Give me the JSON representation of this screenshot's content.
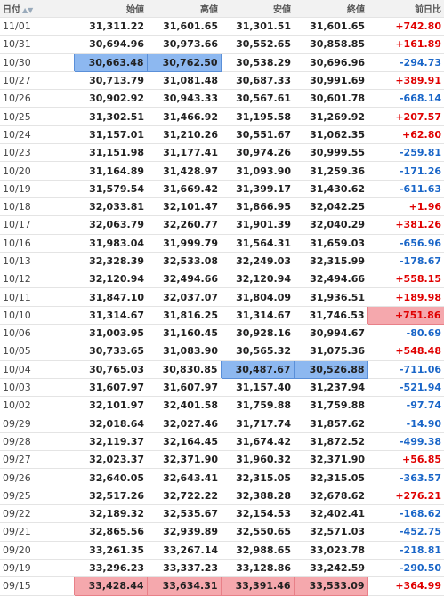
{
  "table": {
    "header": [
      "日付",
      "始値",
      "高値",
      "安値",
      "終値",
      "前日比"
    ],
    "rows": [
      [
        "11/01",
        "31,311.22",
        "31,601.65",
        "31,301.51",
        "31,601.65",
        "+742.80"
      ],
      [
        "10/31",
        "30,694.96",
        "30,973.66",
        "30,552.65",
        "30,858.85",
        "+161.89"
      ],
      [
        "10/30",
        "30,663.48",
        "30,762.50",
        "30,538.29",
        "30,696.96",
        "-294.73"
      ],
      [
        "10/27",
        "30,713.79",
        "31,081.48",
        "30,687.33",
        "30,991.69",
        "+389.91"
      ],
      [
        "10/26",
        "30,902.92",
        "30,943.33",
        "30,567.61",
        "30,601.78",
        "-668.14"
      ],
      [
        "10/25",
        "31,302.51",
        "31,466.92",
        "31,195.58",
        "31,269.92",
        "+207.57"
      ],
      [
        "10/24",
        "31,157.01",
        "31,210.26",
        "30,551.67",
        "31,062.35",
        "+62.80"
      ],
      [
        "10/23",
        "31,151.98",
        "31,177.41",
        "30,974.26",
        "30,999.55",
        "-259.81"
      ],
      [
        "10/20",
        "31,164.89",
        "31,428.97",
        "31,093.90",
        "31,259.36",
        "-171.26"
      ],
      [
        "10/19",
        "31,579.54",
        "31,669.42",
        "31,399.17",
        "31,430.62",
        "-611.63"
      ],
      [
        "10/18",
        "32,033.81",
        "32,101.47",
        "31,866.95",
        "32,042.25",
        "+1.96"
      ],
      [
        "10/17",
        "32,063.79",
        "32,260.77",
        "31,901.39",
        "32,040.29",
        "+381.26"
      ],
      [
        "10/16",
        "31,983.04",
        "31,999.79",
        "31,564.31",
        "31,659.03",
        "-656.96"
      ],
      [
        "10/13",
        "32,328.39",
        "32,533.08",
        "32,249.03",
        "32,315.99",
        "-178.67"
      ],
      [
        "10/12",
        "32,120.94",
        "32,494.66",
        "32,120.94",
        "32,494.66",
        "+558.15"
      ],
      [
        "10/11",
        "31,847.10",
        "32,037.07",
        "31,804.09",
        "31,936.51",
        "+189.98"
      ],
      [
        "10/10",
        "31,314.67",
        "31,816.25",
        "31,314.67",
        "31,746.53",
        "+751.86"
      ],
      [
        "10/06",
        "31,003.95",
        "31,160.45",
        "30,928.16",
        "30,994.67",
        "-80.69"
      ],
      [
        "10/05",
        "30,733.65",
        "31,083.90",
        "30,565.32",
        "31,075.36",
        "+548.48"
      ],
      [
        "10/04",
        "30,765.03",
        "30,830.85",
        "30,487.67",
        "30,526.88",
        "-711.06"
      ],
      [
        "10/03",
        "31,607.97",
        "31,607.97",
        "31,157.40",
        "31,237.94",
        "-521.94"
      ],
      [
        "10/02",
        "32,101.97",
        "32,401.58",
        "31,759.88",
        "31,759.88",
        "-97.74"
      ],
      [
        "09/29",
        "32,018.64",
        "32,027.46",
        "31,717.74",
        "31,857.62",
        "-14.90"
      ],
      [
        "09/28",
        "32,119.37",
        "32,164.45",
        "31,674.42",
        "31,872.52",
        "-499.38"
      ],
      [
        "09/27",
        "32,023.37",
        "32,371.90",
        "31,960.32",
        "32,371.90",
        "+56.85"
      ],
      [
        "09/26",
        "32,640.05",
        "32,643.41",
        "32,315.05",
        "32,315.05",
        "-363.57"
      ],
      [
        "09/25",
        "32,517.26",
        "32,722.22",
        "32,388.28",
        "32,678.62",
        "+276.21"
      ],
      [
        "09/22",
        "32,189.32",
        "32,535.67",
        "32,154.53",
        "32,402.41",
        "-168.62"
      ],
      [
        "09/21",
        "32,865.56",
        "32,939.89",
        "32,550.65",
        "32,571.03",
        "-452.75"
      ],
      [
        "09/20",
        "33,261.35",
        "33,267.14",
        "32,988.65",
        "33,023.78",
        "-218.81"
      ],
      [
        "09/19",
        "33,296.23",
        "33,337.23",
        "33,128.86",
        "33,242.59",
        "-290.50"
      ],
      [
        "09/15",
        "33,428.44",
        "33,634.31",
        "33,391.46",
        "33,533.09",
        "+364.99"
      ]
    ]
  }
}
